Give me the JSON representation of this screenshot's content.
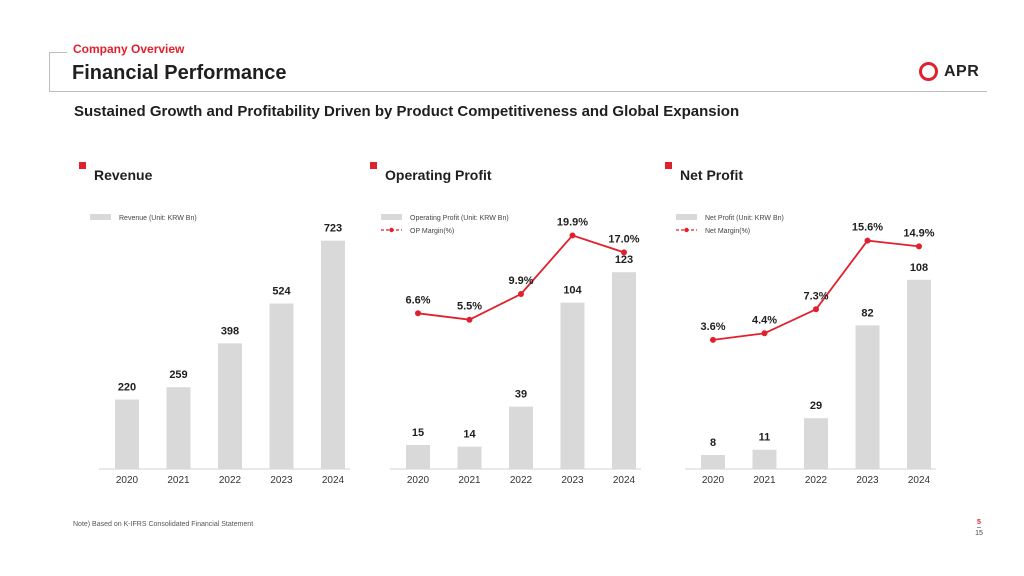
{
  "header": {
    "section": "Company Overview",
    "title": "Financial Performance",
    "logo_text": "APR"
  },
  "subtitle": "Sustained Growth and Profitability Driven by Product Competitiveness and Global Expansion",
  "footer": {
    "note": "Note) Based on K-IFRS Consolidated Financial Statement",
    "page_current": "5",
    "page_total": "15"
  },
  "colors": {
    "accent": "#e1202d",
    "bar": "#d9d9d9",
    "text": "#1f1f1f"
  },
  "chart_data": [
    {
      "type": "bar",
      "title": "Revenue",
      "categories": [
        "2020",
        "2021",
        "2022",
        "2023",
        "2024"
      ],
      "series": [
        {
          "name": "Revenue (Unit: KRW Bn)",
          "values": [
            220,
            259,
            398,
            524,
            723
          ]
        }
      ],
      "ylim": [
        0,
        760
      ],
      "legend": "top-left",
      "grid": false
    },
    {
      "type": "bar",
      "title": "Operating Profit",
      "categories": [
        "2020",
        "2021",
        "2022",
        "2023",
        "2024"
      ],
      "series": [
        {
          "name": "Operating Profit (Unit: KRW Bn)",
          "values": [
            15,
            14,
            39,
            104,
            123
          ]
        },
        {
          "name": "OP Margin(%)",
          "type": "line",
          "values": [
            6.6,
            5.5,
            9.9,
            19.9,
            17.0
          ],
          "labels": [
            "6.6%",
            "5.5%",
            "9.9%",
            "19.9%",
            "17.0%"
          ]
        }
      ],
      "ylim": [
        0,
        150
      ],
      "line_ylim": [
        -20,
        21
      ],
      "legend": "top-left",
      "grid": false
    },
    {
      "type": "bar",
      "title": "Net Profit",
      "categories": [
        "2020",
        "2021",
        "2022",
        "2023",
        "2024"
      ],
      "series": [
        {
          "name": "Net Profit (Unit: KRW Bn)",
          "values": [
            8,
            11,
            29,
            82,
            108
          ]
        },
        {
          "name": "Net Margin(%)",
          "type": "line",
          "values": [
            3.6,
            4.4,
            7.3,
            15.6,
            14.9
          ],
          "labels": [
            "3.6%",
            "4.4%",
            "7.3%",
            "15.6%",
            "14.9%"
          ]
        }
      ],
      "ylim": [
        0,
        137
      ],
      "line_ylim": [
        -12,
        17
      ],
      "legend": "top-left",
      "grid": false
    }
  ]
}
